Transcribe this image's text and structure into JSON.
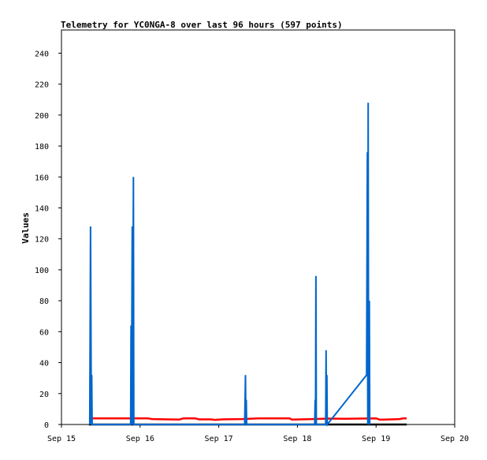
{
  "chart_data": {
    "type": "line",
    "title": "Telemetry for YC0NGA-8 over last 96 hours (597 points)",
    "xlabel": "",
    "ylabel": "Values",
    "x_ticks": [
      "Sep 15",
      "Sep 16",
      "Sep 17",
      "Sep 18",
      "Sep 19",
      "Sep 20"
    ],
    "x_tick_positions": [
      15,
      16,
      17,
      18,
      19,
      20
    ],
    "xlim": [
      15,
      20
    ],
    "y_ticks": [
      "0",
      "20",
      "40",
      "60",
      "80",
      "100",
      "120",
      "140",
      "160",
      "180",
      "200",
      "220",
      "240"
    ],
    "y_tick_values": [
      0,
      20,
      40,
      60,
      80,
      100,
      120,
      140,
      160,
      180,
      200,
      220,
      240
    ],
    "ylim": [
      0,
      255
    ],
    "grid": false,
    "legend": "none",
    "x_unit_note": "days of September",
    "series": [
      {
        "color": "#000000",
        "points": [
          [
            15.35,
            0
          ],
          [
            19.39,
            0
          ]
        ]
      },
      {
        "color": "#ff0000",
        "points": [
          [
            15.35,
            4
          ],
          [
            15.5,
            4
          ],
          [
            15.9,
            4
          ],
          [
            16.1,
            4
          ],
          [
            16.15,
            3.5
          ],
          [
            16.35,
            3.3
          ],
          [
            16.5,
            3.2
          ],
          [
            16.55,
            4
          ],
          [
            16.7,
            4
          ],
          [
            16.75,
            3.3
          ],
          [
            16.9,
            3.3
          ],
          [
            16.95,
            3
          ],
          [
            17.05,
            3.3
          ],
          [
            17.2,
            3.4
          ],
          [
            17.3,
            3.5
          ],
          [
            17.5,
            4
          ],
          [
            17.9,
            4
          ],
          [
            17.93,
            3.2
          ],
          [
            18.05,
            3.3
          ],
          [
            18.2,
            3.5
          ],
          [
            18.4,
            3.8
          ],
          [
            18.6,
            3.7
          ],
          [
            18.8,
            3.8
          ],
          [
            19.0,
            4
          ],
          [
            19.05,
            3.1
          ],
          [
            19.2,
            3.3
          ],
          [
            19.3,
            3.5
          ],
          [
            19.35,
            4
          ],
          [
            19.39,
            4
          ]
        ]
      },
      {
        "color": "#0066cc",
        "points": [
          [
            15.36,
            0
          ],
          [
            15.37,
            128
          ],
          [
            15.38,
            0
          ],
          [
            15.385,
            32
          ],
          [
            15.39,
            0
          ],
          [
            15.88,
            0
          ],
          [
            15.885,
            64
          ],
          [
            15.89,
            0
          ],
          [
            15.9,
            128
          ],
          [
            15.905,
            0
          ],
          [
            15.915,
            160
          ],
          [
            15.92,
            0
          ],
          [
            17.33,
            0
          ],
          [
            17.34,
            32
          ],
          [
            17.345,
            0
          ],
          [
            17.35,
            16
          ],
          [
            17.355,
            0
          ],
          [
            18.22,
            0
          ],
          [
            18.225,
            16
          ],
          [
            18.23,
            0
          ],
          [
            18.235,
            96
          ],
          [
            18.24,
            0
          ],
          [
            18.36,
            0
          ],
          [
            18.365,
            48
          ],
          [
            18.37,
            0
          ],
          [
            18.375,
            32
          ],
          [
            18.38,
            0
          ],
          [
            18.88,
            32
          ],
          [
            18.89,
            176
          ],
          [
            18.895,
            0
          ],
          [
            18.9,
            208
          ],
          [
            18.905,
            0
          ],
          [
            18.915,
            80
          ],
          [
            18.92,
            0
          ]
        ]
      }
    ]
  }
}
